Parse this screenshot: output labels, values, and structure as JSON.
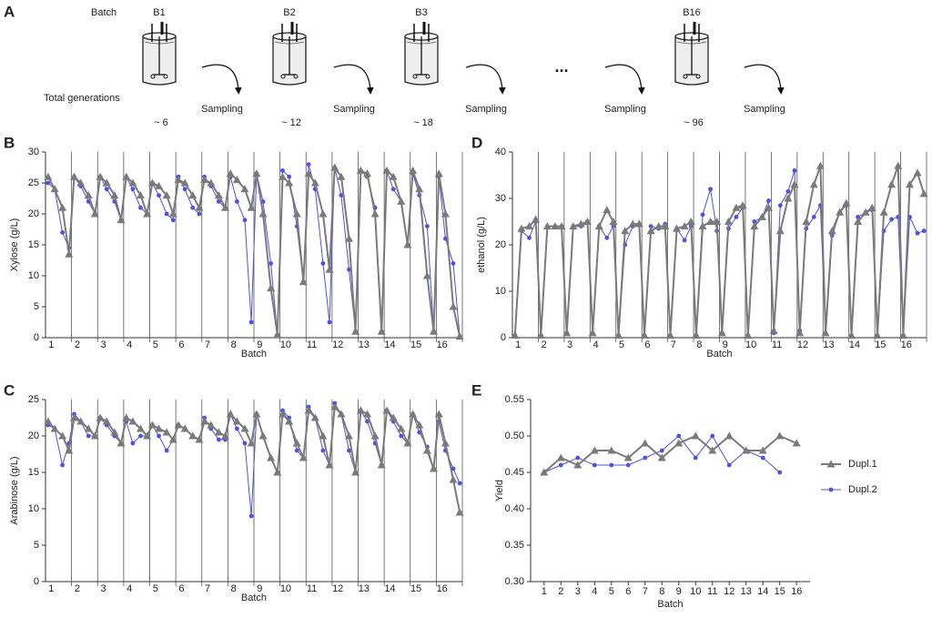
{
  "diagram": {
    "panel": "A",
    "batch_label": "Batch",
    "generations_label": "Total generations",
    "ellipsis": "...",
    "batches": [
      {
        "name": "B1",
        "generations": "~ 6"
      },
      {
        "name": "B2",
        "generations": "~ 12"
      },
      {
        "name": "B3",
        "generations": "~ 18"
      },
      {
        "name": "B16",
        "generations": "~ 96"
      }
    ],
    "sampling": [
      "Sampling",
      "Sampling",
      "Sampling",
      "Sampling",
      "Sampling"
    ]
  },
  "chart_data": [
    {
      "type": "line",
      "panel": "B",
      "ylabel": "Xylose (g/L)",
      "xlabel": "Batch",
      "x": [
        0.6,
        0.85,
        1.15,
        1.4,
        1.6,
        1.85,
        2.15,
        2.4,
        2.6,
        2.85,
        3.15,
        3.4,
        3.6,
        3.85,
        4.15,
        4.4,
        4.6,
        4.85,
        5.15,
        5.4,
        5.6,
        5.85,
        6.15,
        6.4,
        6.6,
        6.85,
        7.15,
        7.4,
        7.6,
        7.85,
        8.15,
        8.4,
        8.6,
        8.85,
        9.15,
        9.4,
        9.6,
        9.85,
        10.15,
        10.4,
        10.6,
        10.85,
        11.15,
        11.4,
        11.6,
        11.85,
        12.15,
        12.4,
        12.6,
        12.85,
        13.15,
        13.4,
        13.6,
        13.85,
        14.15,
        14.4,
        14.6,
        14.85,
        15.15,
        15.4,
        15.6,
        15.85,
        16.15,
        16.4
      ],
      "xlim": [
        0.5,
        16.5
      ],
      "xticks": [
        1,
        2,
        3,
        4,
        5,
        6,
        7,
        8,
        9,
        10,
        11,
        12,
        13,
        14,
        15,
        16
      ],
      "ylim": [
        0,
        30
      ],
      "yticks": [
        0,
        5,
        10,
        15,
        20,
        25,
        30
      ],
      "series": [
        {
          "color": "#7a7a7a",
          "marker": "triangle",
          "values": [
            26,
            24,
            21,
            13.5,
            26,
            25,
            23,
            20,
            26,
            25,
            23,
            19,
            26,
            25,
            23,
            20,
            25,
            24.5,
            23,
            20,
            25.5,
            25,
            23,
            21,
            25.5,
            25,
            23,
            21,
            26.5,
            25.5,
            24,
            21,
            26.5,
            20,
            8,
            0.5,
            26,
            25,
            20,
            9,
            26.5,
            25,
            20,
            11,
            27.5,
            26,
            16,
            1,
            27,
            26.5,
            20,
            1,
            27,
            26,
            22,
            15,
            27,
            24,
            10,
            1,
            26.5,
            20,
            5,
            0.2
          ]
        },
        {
          "color": "#5050e6",
          "marker": "circle",
          "values": [
            25,
            24,
            17,
            14.5,
            26,
            24.5,
            22,
            20,
            26,
            24,
            22,
            19,
            26,
            24,
            21,
            20,
            25,
            23,
            20,
            19,
            26,
            24,
            21,
            20,
            26,
            24.5,
            22,
            21,
            26,
            22,
            19,
            2.5,
            26.5,
            22,
            12,
            0.5,
            27,
            26,
            18,
            9,
            28,
            24,
            12,
            2.5,
            27.5,
            23,
            11,
            1,
            27,
            26,
            21,
            1,
            27,
            24,
            22,
            15,
            26.5,
            23,
            18,
            1,
            26,
            16,
            12,
            0.2
          ]
        }
      ]
    },
    {
      "type": "line",
      "panel": "C",
      "ylabel": "Arabinose (g/L)",
      "xlabel": "Batch",
      "x": [
        0.6,
        0.85,
        1.15,
        1.4,
        1.6,
        1.85,
        2.15,
        2.4,
        2.6,
        2.85,
        3.15,
        3.4,
        3.6,
        3.85,
        4.15,
        4.4,
        4.6,
        4.85,
        5.15,
        5.4,
        5.6,
        5.85,
        6.15,
        6.4,
        6.6,
        6.85,
        7.15,
        7.4,
        7.6,
        7.85,
        8.15,
        8.4,
        8.6,
        8.85,
        9.15,
        9.4,
        9.6,
        9.85,
        10.15,
        10.4,
        10.6,
        10.85,
        11.15,
        11.4,
        11.6,
        11.85,
        12.15,
        12.4,
        12.6,
        12.85,
        13.15,
        13.4,
        13.6,
        13.85,
        14.15,
        14.4,
        14.6,
        14.85,
        15.15,
        15.4,
        15.6,
        15.85,
        16.15,
        16.4
      ],
      "xlim": [
        0.5,
        16.5
      ],
      "xticks": [
        1,
        2,
        3,
        4,
        5,
        6,
        7,
        8,
        9,
        10,
        11,
        12,
        13,
        14,
        15,
        16
      ],
      "ylim": [
        0,
        25
      ],
      "yticks": [
        0,
        5,
        10,
        15,
        20,
        25
      ],
      "series": [
        {
          "color": "#7a7a7a",
          "marker": "triangle",
          "values": [
            22,
            21,
            20,
            18,
            22.5,
            22,
            21,
            20,
            22.5,
            22,
            20.5,
            19,
            22.5,
            22,
            21,
            20,
            21.5,
            21,
            20.5,
            19.5,
            21.5,
            21,
            20,
            19.5,
            22,
            21.5,
            20.5,
            20,
            23,
            22,
            21,
            19,
            23,
            20,
            17,
            15,
            23,
            22,
            19,
            17,
            23.5,
            22.5,
            20,
            16,
            24,
            23,
            20,
            15,
            23.5,
            23,
            20,
            16,
            23.5,
            22.5,
            21,
            19,
            23,
            21.5,
            18,
            15.5,
            23,
            19,
            14,
            9.5
          ]
        },
        {
          "color": "#5050e6",
          "marker": "circle",
          "values": [
            21.5,
            21,
            16,
            19,
            23,
            22,
            20,
            20,
            22.5,
            21.5,
            20,
            19,
            22,
            19,
            20,
            20,
            21.5,
            20,
            18,
            19.5,
            21.5,
            21,
            20,
            19.5,
            22.5,
            21,
            19.5,
            19.5,
            23,
            21,
            19,
            9,
            23,
            20,
            17,
            15,
            23.5,
            22.5,
            18,
            17,
            24,
            22.5,
            18,
            16,
            24.5,
            23,
            18,
            15,
            23.5,
            22,
            19,
            16,
            23.5,
            22,
            20,
            19,
            23,
            20.5,
            18.5,
            15.5,
            22,
            18,
            15.5,
            13.5
          ]
        }
      ]
    },
    {
      "type": "line",
      "panel": "D",
      "ylabel": "ethanol (g/L)",
      "xlabel": "Batch",
      "x": [
        0.6,
        0.85,
        1.15,
        1.4,
        1.6,
        1.85,
        2.15,
        2.4,
        2.6,
        2.85,
        3.15,
        3.4,
        3.6,
        3.85,
        4.15,
        4.4,
        4.6,
        4.85,
        5.15,
        5.4,
        5.6,
        5.85,
        6.15,
        6.4,
        6.6,
        6.85,
        7.15,
        7.4,
        7.6,
        7.85,
        8.15,
        8.4,
        8.6,
        8.85,
        9.15,
        9.4,
        9.6,
        9.85,
        10.15,
        10.4,
        10.6,
        10.85,
        11.15,
        11.4,
        11.6,
        11.85,
        12.15,
        12.4,
        12.6,
        12.85,
        13.15,
        13.4,
        13.6,
        13.85,
        14.15,
        14.4,
        14.6,
        14.85,
        15.15,
        15.4,
        15.6,
        15.85,
        16.15,
        16.4
      ],
      "xlim": [
        0.5,
        16.5
      ],
      "xticks": [
        1,
        2,
        3,
        4,
        5,
        6,
        7,
        8,
        9,
        10,
        11,
        12,
        13,
        14,
        15,
        16
      ],
      "ylim": [
        0,
        40
      ],
      "yticks": [
        0,
        10,
        20,
        30,
        40
      ],
      "series": [
        {
          "color": "#7a7a7a",
          "marker": "triangle",
          "values": [
            0.5,
            23.5,
            24,
            25.5,
            0.5,
            24,
            24,
            24,
            1,
            24,
            24.5,
            25,
            1,
            24,
            27.5,
            25,
            0.5,
            23,
            24.5,
            24.5,
            0.5,
            23,
            24,
            24,
            0.5,
            23.5,
            24,
            25,
            0.5,
            24,
            25,
            25,
            1,
            25,
            28,
            28.5,
            0.5,
            24,
            26,
            28,
            1.5,
            23,
            30,
            33,
            1,
            25,
            33,
            37,
            1,
            23,
            27,
            29,
            0.5,
            25,
            27,
            28,
            0.5,
            27,
            33,
            37,
            0.5,
            33,
            35.5,
            31
          ]
        },
        {
          "color": "#5050e6",
          "marker": "circle",
          "values": [
            0.5,
            23,
            21.5,
            25,
            0.5,
            24,
            24,
            24,
            1,
            24,
            24,
            25,
            1,
            24,
            21.5,
            24,
            0.5,
            20,
            24,
            24.5,
            0.5,
            24,
            23.5,
            24.5,
            0.5,
            23.5,
            21,
            24,
            0.5,
            26.5,
            32,
            23,
            1,
            23.5,
            26,
            28,
            0.5,
            25,
            26,
            29.5,
            1,
            28.5,
            31.5,
            36,
            1.5,
            23.5,
            26,
            28.5,
            1,
            22,
            27,
            28.5,
            0.5,
            26,
            27,
            27.5,
            0.5,
            23,
            25.5,
            26,
            0.5,
            26,
            22.5,
            23
          ]
        }
      ]
    },
    {
      "type": "line",
      "panel": "E",
      "ylabel": "Yield",
      "xlabel": "Batch",
      "categories": [
        "1",
        "2",
        "3",
        "4",
        "5",
        "6",
        "7",
        "8",
        "9",
        "10",
        "11",
        "12",
        "13",
        "14",
        "15",
        "16"
      ],
      "ylim": [
        0.3,
        0.55
      ],
      "yticks": [
        {
          "value": 0.3,
          "label": "0.30"
        },
        {
          "value": 0.35,
          "label": "0.35"
        },
        {
          "value": 0.4,
          "label": "0.40"
        },
        {
          "value": 0.45,
          "label": "0.45"
        },
        {
          "value": 0.5,
          "label": "0.50"
        },
        {
          "value": 0.55,
          "label": "0.55"
        }
      ],
      "legend": "right",
      "series": [
        {
          "name": "Dupl.1",
          "color": "#7a7a7a",
          "marker": "triangle",
          "values": [
            0.45,
            0.47,
            0.46,
            0.48,
            0.48,
            0.47,
            0.49,
            0.47,
            0.49,
            0.5,
            0.48,
            0.5,
            0.48,
            0.48,
            0.5,
            0.49
          ]
        },
        {
          "name": "Dupl.2",
          "color": "#5050e6",
          "marker": "circle",
          "values": [
            0.45,
            0.46,
            0.47,
            0.46,
            0.46,
            0.46,
            0.47,
            0.48,
            0.5,
            0.47,
            0.5,
            0.46,
            0.48,
            0.47,
            0.45,
            null
          ]
        }
      ]
    }
  ]
}
